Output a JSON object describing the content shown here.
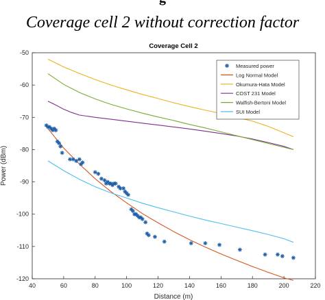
{
  "page": {
    "top_fragment": "g",
    "caption": "Coverage cell 2 without correction factor"
  },
  "chart_data": {
    "type": "line",
    "title": "Coverage Cell 2",
    "xlabel": "Distance (m)",
    "ylabel": "Power (dBm)",
    "xlim": [
      40,
      220
    ],
    "ylim": [
      -120,
      -50
    ],
    "xticks": [
      40,
      60,
      80,
      100,
      120,
      140,
      160,
      180,
      200,
      220
    ],
    "yticks": [
      -50,
      -60,
      -70,
      -80,
      -90,
      -100,
      -110,
      -120
    ],
    "grid": false,
    "legend_position": "top-right",
    "measured": {
      "name": "Measured power",
      "color": "#1f5fa8",
      "x": [
        49,
        50,
        51,
        52,
        53,
        54,
        55,
        56,
        57,
        58,
        59,
        64,
        66,
        68,
        70,
        71,
        72,
        80,
        82,
        84,
        86,
        87,
        88,
        89,
        90,
        91,
        92,
        93,
        95,
        96,
        98,
        99,
        100,
        101,
        103,
        104,
        105,
        106,
        107,
        108,
        109,
        110,
        112,
        113,
        114,
        118,
        124,
        141,
        150,
        159,
        172,
        188,
        196,
        199,
        206
      ],
      "y": [
        -72.5,
        -73,
        -73,
        -73.5,
        -74,
        -73.5,
        -74,
        -77.5,
        -78,
        -79,
        -81,
        -83,
        -83,
        -83.5,
        -83,
        -84.5,
        -84,
        -87,
        -87.5,
        -89,
        -89.5,
        -90.5,
        -90,
        -90.5,
        -90.5,
        -91,
        -90.5,
        -90.5,
        -91.5,
        -92,
        -92,
        -93,
        -93.5,
        -94,
        -98.5,
        -99,
        -100,
        -100,
        -100.5,
        -101,
        -101,
        -101.5,
        -102.5,
        -106,
        -106.5,
        -107,
        -108.5,
        -109,
        -109,
        -109.5,
        -111,
        -112.5,
        -112.5,
        -113,
        -113.5
      ]
    },
    "series": [
      {
        "name": "Log Normal Model",
        "color": "#d95319",
        "x": [
          50,
          60,
          70,
          80,
          90,
          100,
          110,
          120,
          130,
          140,
          150,
          160,
          170,
          180,
          190,
          200,
          206
        ],
        "y": [
          -73.5,
          -79.5,
          -84.5,
          -89,
          -93,
          -96.5,
          -99.8,
          -102.7,
          -105.4,
          -107.9,
          -110.2,
          -112.3,
          -114.3,
          -116.2,
          -118,
          -119.7,
          -120.5
        ]
      },
      {
        "name": "Okumura-Hata Model",
        "color": "#edb120",
        "x": [
          50,
          60,
          70,
          80,
          90,
          100,
          110,
          120,
          130,
          140,
          150,
          160,
          170,
          180,
          190,
          200,
          206
        ],
        "y": [
          -52,
          -54.4,
          -56.4,
          -58.3,
          -60,
          -61.5,
          -62.9,
          -64.2,
          -65.5,
          -66.7,
          -67.8,
          -68.8,
          -70,
          -71.2,
          -72.8,
          -74.8,
          -76
        ]
      },
      {
        "name": "COST 231 Model",
        "color": "#7e2f8e",
        "x": [
          50,
          55,
          60,
          65,
          70,
          80,
          90,
          100,
          110,
          120,
          130,
          140,
          150,
          160,
          170,
          180,
          190,
          200,
          206
        ],
        "y": [
          -65,
          -66.2,
          -67.5,
          -68.5,
          -69.3,
          -70,
          -70.6,
          -71.2,
          -71.8,
          -72.4,
          -73,
          -73.6,
          -74.3,
          -75,
          -75.8,
          -76.7,
          -77.8,
          -79,
          -80
        ]
      },
      {
        "name": "Walfish-Bertoni Model",
        "color": "#77ac30",
        "x": [
          50,
          60,
          70,
          80,
          90,
          100,
          110,
          120,
          130,
          140,
          150,
          160,
          170,
          180,
          190,
          200,
          206
        ],
        "y": [
          -56.5,
          -59.8,
          -62.3,
          -64.3,
          -66,
          -67.4,
          -68.7,
          -69.9,
          -71,
          -72.2,
          -73.3,
          -74.5,
          -75.7,
          -76.9,
          -78.1,
          -79.3,
          -80
        ]
      },
      {
        "name": "SUI Model",
        "color": "#4dbeee",
        "x": [
          50,
          60,
          70,
          80,
          90,
          100,
          110,
          120,
          130,
          140,
          150,
          160,
          170,
          180,
          190,
          200,
          206
        ],
        "y": [
          -83.5,
          -86.5,
          -89.2,
          -91.5,
          -93.4,
          -95,
          -96.6,
          -98,
          -99.3,
          -100.6,
          -101.8,
          -102.9,
          -104,
          -105.1,
          -106.3,
          -107.6,
          -108.7
        ]
      }
    ]
  }
}
